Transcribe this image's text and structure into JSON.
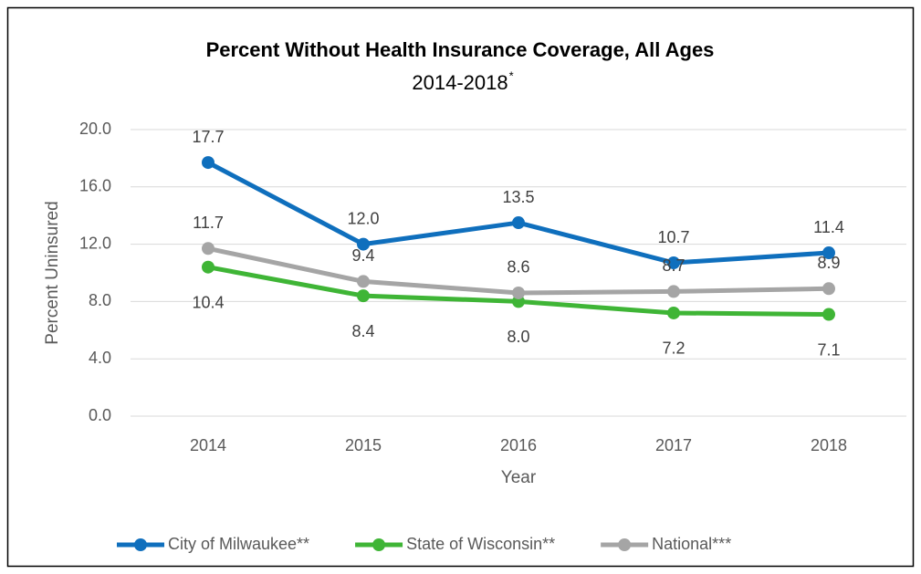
{
  "chart_data": {
    "type": "line",
    "title": "Percent Without Health Insurance Coverage, All Ages",
    "subtitle": "2014-2018",
    "subtitle_superscript": "*",
    "x_label": "Year",
    "y_label": "Percent Uninsured",
    "categories": [
      "2014",
      "2015",
      "2016",
      "2017",
      "2018"
    ],
    "series": [
      {
        "name": "City of Milwaukee**",
        "color": "#0f6fbd",
        "values": [
          17.7,
          12.0,
          13.5,
          10.7,
          11.4
        ],
        "value_labels": [
          "17.7",
          "12.0",
          "13.5",
          "10.7",
          "11.4"
        ]
      },
      {
        "name": "State of Wisconsin**",
        "color": "#3fb536",
        "values": [
          10.4,
          8.4,
          8.0,
          7.2,
          7.1
        ],
        "value_labels": [
          "10.4",
          "8.4",
          "8.0",
          "7.2",
          "7.1"
        ]
      },
      {
        "name": "National***",
        "color": "#a5a5a5",
        "values": [
          11.7,
          9.4,
          8.6,
          8.7,
          8.9
        ],
        "value_labels": [
          "11.7",
          "9.4",
          "8.6",
          "8.7",
          "8.9"
        ]
      }
    ],
    "ylim": [
      0,
      20
    ],
    "yticks": [
      {
        "value": 0,
        "label": "0.0"
      },
      {
        "value": 4,
        "label": "4.0"
      },
      {
        "value": 8,
        "label": "8.0"
      },
      {
        "value": 12,
        "label": "12.0"
      },
      {
        "value": 16,
        "label": "16.0"
      },
      {
        "value": 20,
        "label": "20.0"
      }
    ],
    "grid": true,
    "legend": "bottom"
  }
}
